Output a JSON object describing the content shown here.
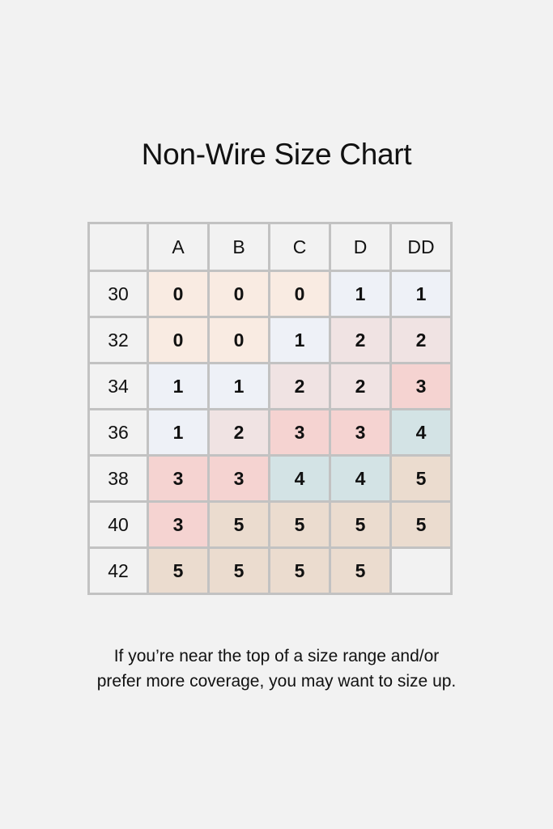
{
  "chart_data": {
    "type": "table",
    "title": "Non-Wire Size Chart",
    "columns": [
      "A",
      "B",
      "C",
      "D",
      "DD"
    ],
    "rows": [
      {
        "band": "30",
        "values": [
          "0",
          "0",
          "0",
          "1",
          "1"
        ]
      },
      {
        "band": "32",
        "values": [
          "0",
          "0",
          "1",
          "2",
          "2"
        ]
      },
      {
        "band": "34",
        "values": [
          "1",
          "1",
          "2",
          "2",
          "3"
        ]
      },
      {
        "band": "36",
        "values": [
          "1",
          "2",
          "3",
          "3",
          "4"
        ]
      },
      {
        "band": "38",
        "values": [
          "3",
          "3",
          "4",
          "4",
          "5"
        ]
      },
      {
        "band": "40",
        "values": [
          "3",
          "5",
          "5",
          "5",
          "5"
        ]
      },
      {
        "band": "42",
        "values": [
          "5",
          "5",
          "5",
          "5",
          ""
        ]
      }
    ],
    "value_colors": {
      "0": "#f9ebe2",
      "1": "#eef1f7",
      "2": "#f0e3e3",
      "3": "#f5d3d1",
      "4": "#d3e3e5",
      "5": "#ebdccf"
    }
  },
  "note_lines": [
    "If you’re near the top of a size range and/or",
    "prefer more coverage, you may want to size up."
  ]
}
